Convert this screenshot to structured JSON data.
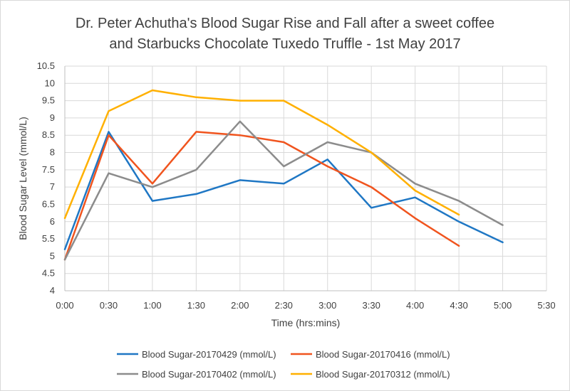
{
  "chart_data": {
    "type": "line",
    "title_lines": [
      "Dr. Peter Achutha's Blood Sugar Rise and Fall after a sweet coffee",
      "and Starbucks Chocolate Tuxedo Truffle - 1st May 2017"
    ],
    "xlabel": "Time (hrs:mins)",
    "ylabel": "Blood Sugar Level (mmol/L)",
    "x_ticks": [
      "0:00",
      "0:30",
      "1:00",
      "1:30",
      "2:00",
      "2:30",
      "3:00",
      "3:30",
      "4:00",
      "4:30",
      "5:00",
      "5:30"
    ],
    "y_ticks": [
      "4",
      "4.5",
      "5",
      "5.5",
      "6",
      "6.5",
      "7",
      "7.5",
      "8",
      "8.5",
      "9",
      "9.5",
      "10",
      "10.5"
    ],
    "ylim": [
      4,
      10.5
    ],
    "xlim_minutes": [
      0,
      330
    ],
    "grid": true,
    "legend_position": "bottom",
    "series": [
      {
        "name": "Blood Sugar-20170429 (mmol/L)",
        "color": "#1f77c4",
        "x": [
          "0:00",
          "0:30",
          "1:00",
          "1:30",
          "2:00",
          "2:30",
          "3:00",
          "3:30",
          "4:00",
          "4:30",
          "5:00"
        ],
        "values": [
          5.2,
          8.6,
          6.6,
          6.8,
          7.2,
          7.1,
          7.8,
          6.4,
          6.7,
          6.0,
          5.4
        ]
      },
      {
        "name": "Blood Sugar-20170416 (mmol/L)",
        "color": "#f0541e",
        "x": [
          "0:00",
          "0:30",
          "1:00",
          "1:30",
          "2:00",
          "2:30",
          "3:00",
          "3:30",
          "4:00",
          "4:30"
        ],
        "values": [
          4.9,
          8.5,
          7.1,
          8.6,
          8.5,
          8.3,
          7.6,
          7.0,
          6.1,
          5.3
        ]
      },
      {
        "name": "Blood Sugar-20170402 (mmol/L)",
        "color": "#8c8c8c",
        "x": [
          "0:00",
          "0:30",
          "1:00",
          "1:30",
          "2:00",
          "2:30",
          "3:00",
          "3:30",
          "4:00",
          "4:30",
          "5:00"
        ],
        "values": [
          4.9,
          7.4,
          7.0,
          7.5,
          8.9,
          7.6,
          8.3,
          8.0,
          7.1,
          6.6,
          5.9
        ]
      },
      {
        "name": "Blood Sugar-20170312 (mmol/L)",
        "color": "#ffb000",
        "x": [
          "0:00",
          "0:30",
          "1:00",
          "1:30",
          "2:00",
          "2:30",
          "3:00",
          "3:30",
          "4:00",
          "4:30"
        ],
        "values": [
          6.1,
          9.2,
          9.8,
          9.6,
          9.5,
          9.5,
          8.8,
          8.0,
          6.9,
          6.2
        ]
      }
    ]
  }
}
